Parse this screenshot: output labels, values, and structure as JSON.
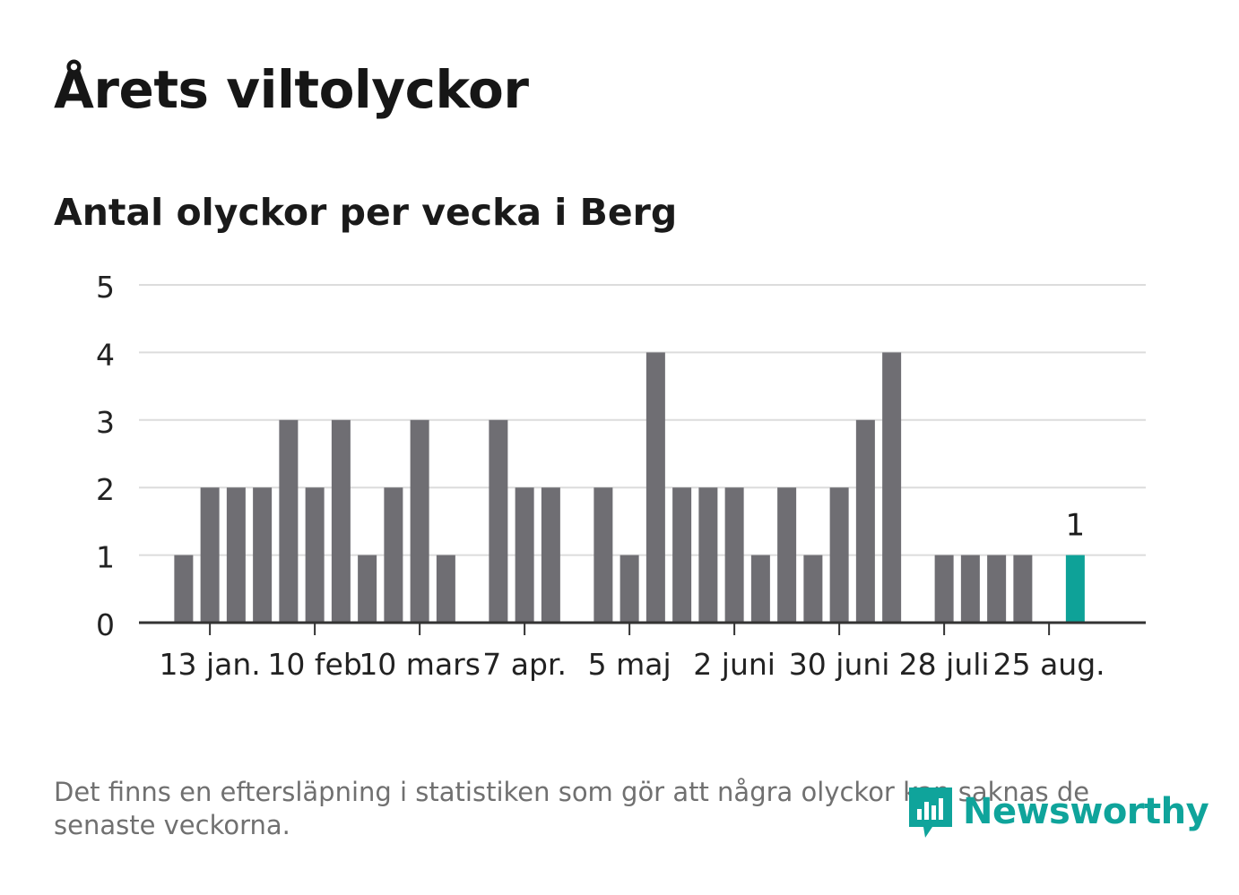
{
  "header": {
    "title": "Årets viltolyckor",
    "subtitle": "Antal olyckor per vecka i Berg"
  },
  "footer": {
    "note": "Det finns en eftersläpning i statistiken som gör att några olyckor kan saknas de senaste veckorna.",
    "brand": "Newsworthy"
  },
  "colors": {
    "bar": "#6f6e73",
    "highlight": "#0ea298",
    "gridline": "#dcdcdc",
    "axis": "#333333",
    "brand": "#0fa49b"
  },
  "chart_data": {
    "type": "bar",
    "title": "Årets viltolyckor",
    "subtitle": "Antal olyckor per vecka i Berg",
    "xlabel": "",
    "ylabel": "",
    "ylim": [
      0,
      5
    ],
    "yticks": [
      0,
      1,
      2,
      3,
      4,
      5
    ],
    "grid": true,
    "x_tick_labels": [
      "13 jan.",
      "10 feb",
      "10 mars",
      "7 apr.",
      "5 maj",
      "2 juni",
      "30 juni",
      "28 juli",
      "25 aug."
    ],
    "x_tick_weeks": [
      3,
      7,
      11,
      15,
      19,
      23,
      27,
      31,
      35
    ],
    "weeks": [
      1,
      2,
      3,
      4,
      5,
      6,
      7,
      8,
      9,
      10,
      11,
      12,
      13,
      14,
      15,
      16,
      17,
      18,
      19,
      20,
      21,
      22,
      23,
      24,
      25,
      26,
      27,
      28,
      29,
      30,
      31,
      32,
      33,
      34,
      35,
      36
    ],
    "values": [
      0,
      1,
      2,
      2,
      2,
      3,
      2,
      3,
      1,
      2,
      3,
      1,
      0,
      3,
      2,
      2,
      0,
      2,
      1,
      4,
      2,
      2,
      2,
      1,
      2,
      1,
      2,
      3,
      4,
      0,
      1,
      1,
      1,
      1,
      0,
      1
    ],
    "highlight_index": 35,
    "highlight_label": "1"
  }
}
